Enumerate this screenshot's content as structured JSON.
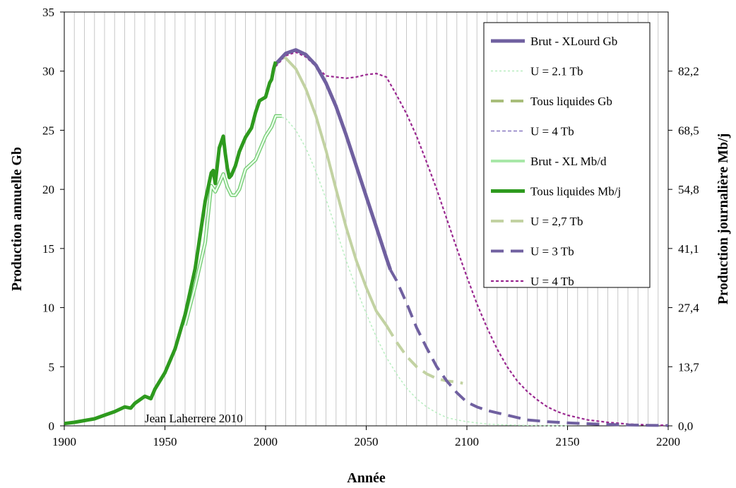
{
  "chart_data": {
    "type": "line",
    "title": "",
    "xlabel": "Année",
    "ylabel": "Production annuelle Gb",
    "y2label": "Production journalière Mb/j",
    "xlim": [
      1900,
      2200
    ],
    "ylim": [
      0,
      35
    ],
    "x_ticks": [
      "1900",
      "1950",
      "2000",
      "2050",
      "2100",
      "2150",
      "2200"
    ],
    "y_ticks": [
      "0",
      "5",
      "10",
      "15",
      "20",
      "25",
      "30",
      "35"
    ],
    "y2_ticks": [
      "0,0",
      "13,7",
      "27,4",
      "41,1",
      "54,8",
      "68,5",
      "82,2"
    ],
    "grid": "vertical every 5 years",
    "legend_position": "top-right",
    "annotation": "Jean Laherrere 2010",
    "series": [
      {
        "name": "Brut - XLourd Gb",
        "color": "#7060A0",
        "style": "solid",
        "x": [
          2005,
          2010,
          2015,
          2020,
          2025,
          2030,
          2035,
          2040,
          2045,
          2050,
          2055,
          2060,
          2062
        ],
        "y": [
          30.6,
          31.5,
          31.8,
          31.4,
          30.5,
          29.0,
          27.0,
          24.6,
          22.0,
          19.4,
          16.8,
          14.2,
          13.2
        ]
      },
      {
        "name": "U = 2.1 Tb",
        "color": "#B8EEC0",
        "style": "dotted",
        "x": [
          2008,
          2010,
          2015,
          2020,
          2025,
          2030,
          2035,
          2040,
          2045,
          2050,
          2055,
          2060,
          2065,
          2070,
          2075,
          2080,
          2085,
          2090,
          2095,
          2100,
          2110,
          2120,
          2130,
          2140,
          2150
        ],
        "y": [
          26.1,
          26.0,
          25.0,
          23.5,
          21.5,
          19.2,
          16.6,
          14.0,
          11.6,
          9.5,
          7.5,
          5.8,
          4.4,
          3.2,
          2.3,
          1.6,
          1.1,
          0.7,
          0.5,
          0.35,
          0.15,
          0.08,
          0.04,
          0.02,
          0.01
        ]
      },
      {
        "name": "Tous liquides Gb",
        "color": "#A8BE7A",
        "style": "dashed",
        "x": [],
        "y": []
      },
      {
        "name": "U = 4 Tb",
        "color": "#8878C0",
        "style": "dotted",
        "x": [],
        "y": []
      },
      {
        "name": "Brut - XL Mb/d",
        "color": "#C0F0C0",
        "style": "solid-outline",
        "x": [
          1960,
          1965,
          1970,
          1973,
          1975,
          1977,
          1979,
          1981,
          1983,
          1985,
          1987,
          1990,
          1995,
          2000,
          2003,
          2005,
          2008
        ],
        "y": [
          8.5,
          11.8,
          15.5,
          20.3,
          19.8,
          20.5,
          21.3,
          20.2,
          19.5,
          19.5,
          20.0,
          21.7,
          22.5,
          24.5,
          25.3,
          26.2,
          26.2
        ]
      },
      {
        "name": "Tous liquides Mb/j",
        "color": "#2E9A1E",
        "style": "solid",
        "x": [
          1900,
          1905,
          1910,
          1915,
          1920,
          1925,
          1930,
          1933,
          1935,
          1940,
          1943,
          1945,
          1950,
          1955,
          1960,
          1965,
          1970,
          1973,
          1974,
          1975,
          1977,
          1978,
          1979,
          1980,
          1981,
          1982,
          1983,
          1985,
          1987,
          1990,
          1993,
          1995,
          1997,
          2000,
          2002,
          2003,
          2004,
          2005
        ],
        "y": [
          0.2,
          0.3,
          0.45,
          0.6,
          0.9,
          1.2,
          1.6,
          1.5,
          1.9,
          2.5,
          2.3,
          3.1,
          4.5,
          6.5,
          9.4,
          13.3,
          19.0,
          21.4,
          21.6,
          20.5,
          23.5,
          24.0,
          24.5,
          23.0,
          21.8,
          21.0,
          21.2,
          22.0,
          23.2,
          24.4,
          25.2,
          26.5,
          27.5,
          27.8,
          29.0,
          29.3,
          30.2,
          30.8
        ]
      },
      {
        "name": "U = 2,7 Tb",
        "color": "#C2D2A2",
        "style": "mixed",
        "x": [
          2008,
          2010,
          2015,
          2020,
          2025,
          2030,
          2035,
          2040,
          2045,
          2050,
          2055,
          2060,
          2065,
          2070,
          2075,
          2080,
          2085,
          2090,
          2095,
          2098
        ],
        "y": [
          31.2,
          31.1,
          30.2,
          28.5,
          26.2,
          23.3,
          20.0,
          16.8,
          14.0,
          11.7,
          9.7,
          8.5,
          7.1,
          5.9,
          5.0,
          4.4,
          4.0,
          3.8,
          3.7,
          3.6
        ]
      },
      {
        "name": "U = 3 Tb",
        "color": "#7060A0",
        "style": "dashed",
        "x": [
          2062,
          2065,
          2070,
          2075,
          2080,
          2085,
          2090,
          2095,
          2100,
          2105,
          2110,
          2120,
          2130,
          2140,
          2150,
          2160,
          2170,
          2180,
          2190,
          2200
        ],
        "y": [
          13.2,
          12.3,
          10.4,
          8.3,
          6.6,
          5.0,
          3.8,
          2.8,
          2.0,
          1.6,
          1.3,
          0.9,
          0.5,
          0.35,
          0.25,
          0.18,
          0.12,
          0.08,
          0.05,
          0.03
        ]
      },
      {
        "name": "U = 4 Tb",
        "color": "#9A2890",
        "style": "dotted-dense",
        "x": [
          2005,
          2010,
          2015,
          2020,
          2025,
          2030,
          2035,
          2040,
          2045,
          2050,
          2055,
          2060,
          2065,
          2070,
          2075,
          2080,
          2085,
          2090,
          2095,
          2100,
          2105,
          2110,
          2115,
          2120,
          2125,
          2130,
          2135,
          2140,
          2145,
          2150,
          2160,
          2170,
          2180,
          2190,
          2200
        ],
        "y": [
          30.4,
          31.3,
          31.6,
          31.2,
          30.4,
          29.6,
          29.5,
          29.4,
          29.5,
          29.7,
          29.8,
          29.5,
          28.0,
          26.4,
          24.5,
          22.3,
          20.0,
          17.5,
          15.0,
          12.6,
          10.3,
          8.3,
          6.5,
          5.0,
          3.8,
          2.9,
          2.2,
          1.6,
          1.2,
          0.9,
          0.5,
          0.3,
          0.15,
          0.08,
          0.04
        ]
      }
    ]
  }
}
